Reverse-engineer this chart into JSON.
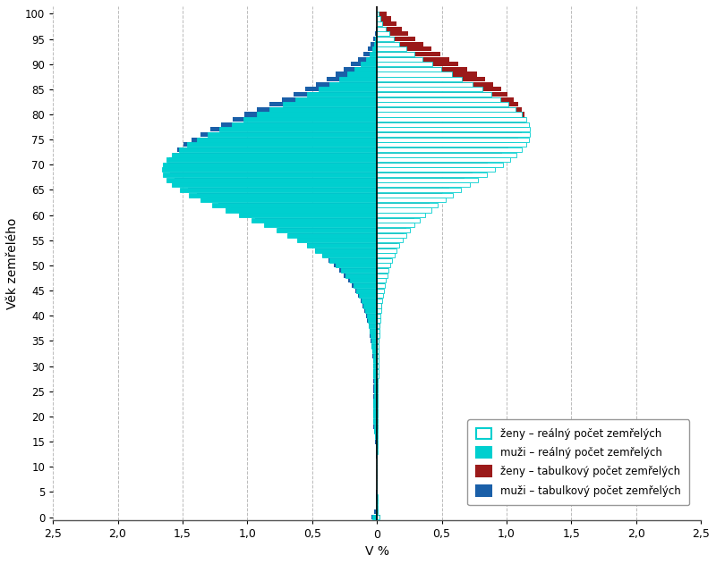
{
  "xlabel": "V %",
  "ylabel": "Věk zemřelého",
  "ages": [
    0,
    1,
    2,
    3,
    4,
    5,
    6,
    7,
    8,
    9,
    10,
    11,
    12,
    13,
    14,
    15,
    16,
    17,
    18,
    19,
    20,
    21,
    22,
    23,
    24,
    25,
    26,
    27,
    28,
    29,
    30,
    31,
    32,
    33,
    34,
    35,
    36,
    37,
    38,
    39,
    40,
    41,
    42,
    43,
    44,
    45,
    46,
    47,
    48,
    49,
    50,
    51,
    52,
    53,
    54,
    55,
    56,
    57,
    58,
    59,
    60,
    61,
    62,
    63,
    64,
    65,
    66,
    67,
    68,
    69,
    70,
    71,
    72,
    73,
    74,
    75,
    76,
    77,
    78,
    79,
    80,
    81,
    82,
    83,
    84,
    85,
    86,
    87,
    88,
    89,
    90,
    91,
    92,
    93,
    94,
    95,
    96,
    97,
    98,
    99,
    100
  ],
  "muzi_tabulkovy": [
    0.04,
    0.02,
    0.01,
    0.008,
    0.006,
    0.005,
    0.004,
    0.004,
    0.004,
    0.004,
    0.004,
    0.004,
    0.005,
    0.007,
    0.009,
    0.012,
    0.018,
    0.025,
    0.028,
    0.03,
    0.032,
    0.032,
    0.03,
    0.028,
    0.027,
    0.027,
    0.027,
    0.027,
    0.028,
    0.029,
    0.03,
    0.032,
    0.035,
    0.038,
    0.042,
    0.047,
    0.053,
    0.059,
    0.066,
    0.074,
    0.085,
    0.098,
    0.112,
    0.128,
    0.147,
    0.168,
    0.193,
    0.222,
    0.254,
    0.29,
    0.33,
    0.375,
    0.425,
    0.48,
    0.542,
    0.61,
    0.684,
    0.764,
    0.849,
    0.939,
    1.033,
    1.128,
    1.222,
    1.31,
    1.391,
    1.461,
    1.52,
    1.565,
    1.596,
    1.613,
    1.616,
    1.604,
    1.579,
    1.542,
    1.493,
    1.434,
    1.365,
    1.288,
    1.204,
    1.114,
    1.021,
    0.925,
    0.828,
    0.732,
    0.64,
    0.552,
    0.469,
    0.391,
    0.32,
    0.256,
    0.199,
    0.149,
    0.107,
    0.072,
    0.046,
    0.028,
    0.016,
    0.008,
    0.004,
    0.002,
    0.001
  ],
  "zeny_tabulkovy": [
    0.03,
    0.015,
    0.008,
    0.006,
    0.005,
    0.004,
    0.003,
    0.003,
    0.003,
    0.003,
    0.003,
    0.003,
    0.003,
    0.004,
    0.005,
    0.006,
    0.007,
    0.009,
    0.01,
    0.011,
    0.011,
    0.011,
    0.011,
    0.011,
    0.011,
    0.011,
    0.011,
    0.011,
    0.011,
    0.012,
    0.013,
    0.013,
    0.014,
    0.015,
    0.016,
    0.018,
    0.02,
    0.022,
    0.024,
    0.027,
    0.03,
    0.034,
    0.038,
    0.043,
    0.049,
    0.055,
    0.062,
    0.07,
    0.079,
    0.089,
    0.1,
    0.112,
    0.126,
    0.142,
    0.16,
    0.181,
    0.204,
    0.23,
    0.258,
    0.29,
    0.325,
    0.364,
    0.407,
    0.455,
    0.506,
    0.56,
    0.617,
    0.676,
    0.736,
    0.795,
    0.854,
    0.911,
    0.965,
    1.013,
    1.056,
    1.091,
    1.119,
    1.138,
    1.147,
    1.147,
    1.137,
    1.118,
    1.09,
    1.053,
    1.008,
    0.956,
    0.898,
    0.836,
    0.77,
    0.7,
    0.629,
    0.558,
    0.489,
    0.422,
    0.357,
    0.297,
    0.242,
    0.192,
    0.148,
    0.11,
    0.078
  ],
  "muzi_realny": [
    0.035,
    0.01,
    0.006,
    0.005,
    0.004,
    0.003,
    0.003,
    0.003,
    0.003,
    0.003,
    0.003,
    0.003,
    0.004,
    0.006,
    0.008,
    0.011,
    0.016,
    0.022,
    0.025,
    0.027,
    0.028,
    0.028,
    0.027,
    0.026,
    0.025,
    0.025,
    0.025,
    0.025,
    0.026,
    0.027,
    0.028,
    0.03,
    0.032,
    0.035,
    0.039,
    0.043,
    0.049,
    0.055,
    0.062,
    0.069,
    0.079,
    0.091,
    0.105,
    0.12,
    0.138,
    0.159,
    0.183,
    0.211,
    0.243,
    0.28,
    0.321,
    0.368,
    0.42,
    0.478,
    0.542,
    0.613,
    0.691,
    0.777,
    0.869,
    0.967,
    1.068,
    1.17,
    1.27,
    1.364,
    1.449,
    1.523,
    1.583,
    1.627,
    1.653,
    1.661,
    1.652,
    1.626,
    1.584,
    1.529,
    1.463,
    1.388,
    1.305,
    1.216,
    1.123,
    1.027,
    0.928,
    0.829,
    0.729,
    0.631,
    0.537,
    0.449,
    0.367,
    0.293,
    0.227,
    0.171,
    0.124,
    0.087,
    0.058,
    0.037,
    0.022,
    0.013,
    0.007,
    0.003,
    0.001,
    0.001,
    0.0
  ],
  "zeny_realny": [
    0.022,
    0.008,
    0.004,
    0.004,
    0.003,
    0.002,
    0.002,
    0.002,
    0.002,
    0.002,
    0.002,
    0.002,
    0.002,
    0.003,
    0.004,
    0.005,
    0.006,
    0.007,
    0.008,
    0.009,
    0.009,
    0.009,
    0.009,
    0.009,
    0.009,
    0.009,
    0.009,
    0.009,
    0.01,
    0.01,
    0.011,
    0.011,
    0.012,
    0.013,
    0.015,
    0.016,
    0.018,
    0.02,
    0.023,
    0.025,
    0.029,
    0.033,
    0.037,
    0.042,
    0.048,
    0.055,
    0.062,
    0.071,
    0.081,
    0.092,
    0.104,
    0.119,
    0.135,
    0.154,
    0.174,
    0.198,
    0.225,
    0.256,
    0.29,
    0.328,
    0.371,
    0.419,
    0.471,
    0.528,
    0.588,
    0.651,
    0.716,
    0.782,
    0.847,
    0.91,
    0.97,
    1.026,
    1.075,
    1.117,
    1.149,
    1.172,
    1.183,
    1.183,
    1.172,
    1.149,
    1.115,
    1.071,
    1.017,
    0.955,
    0.886,
    0.812,
    0.735,
    0.656,
    0.577,
    0.499,
    0.424,
    0.353,
    0.287,
    0.228,
    0.175,
    0.13,
    0.094,
    0.065,
    0.043,
    0.027,
    0.016
  ],
  "color_muzi_tab": "#1a5fa8",
  "color_zeny_tab": "#9b1a1a",
  "color_muzi_real_fill": "#00cfcf",
  "color_muzi_real_edge": "#00cfcf",
  "color_zeny_real_fill": "#ffffff",
  "color_zeny_real_edge": "#00cfcf",
  "bar_height": 0.9,
  "xlim": 2.5,
  "background_color": "#ffffff",
  "grid_color": "#bbbbbb",
  "legend_labels": [
    "ženy – reálný počet zemřelých",
    "muži – reálný počet zemřelých",
    "ženy – tabulkový počet zemřelých",
    "muži – tabulkový počet zemřelých"
  ],
  "legend_face": [
    "#ffffff",
    "#00cfcf",
    "#9b1a1a",
    "#1a5fa8"
  ],
  "legend_edge": [
    "#00cfcf",
    "#00cfcf",
    "#9b1a1a",
    "#1a5fa8"
  ],
  "xtick_positions": [
    -2.5,
    -2.0,
    -1.5,
    -1.0,
    -0.5,
    0.0,
    0.5,
    1.0,
    1.5,
    2.0,
    2.5
  ],
  "xtick_labels": [
    "2,5",
    "2,0",
    "1,5",
    "1,0",
    "0,5",
    "0",
    "0,5",
    "1,0",
    "1,5",
    "2,0",
    "2,5"
  ]
}
